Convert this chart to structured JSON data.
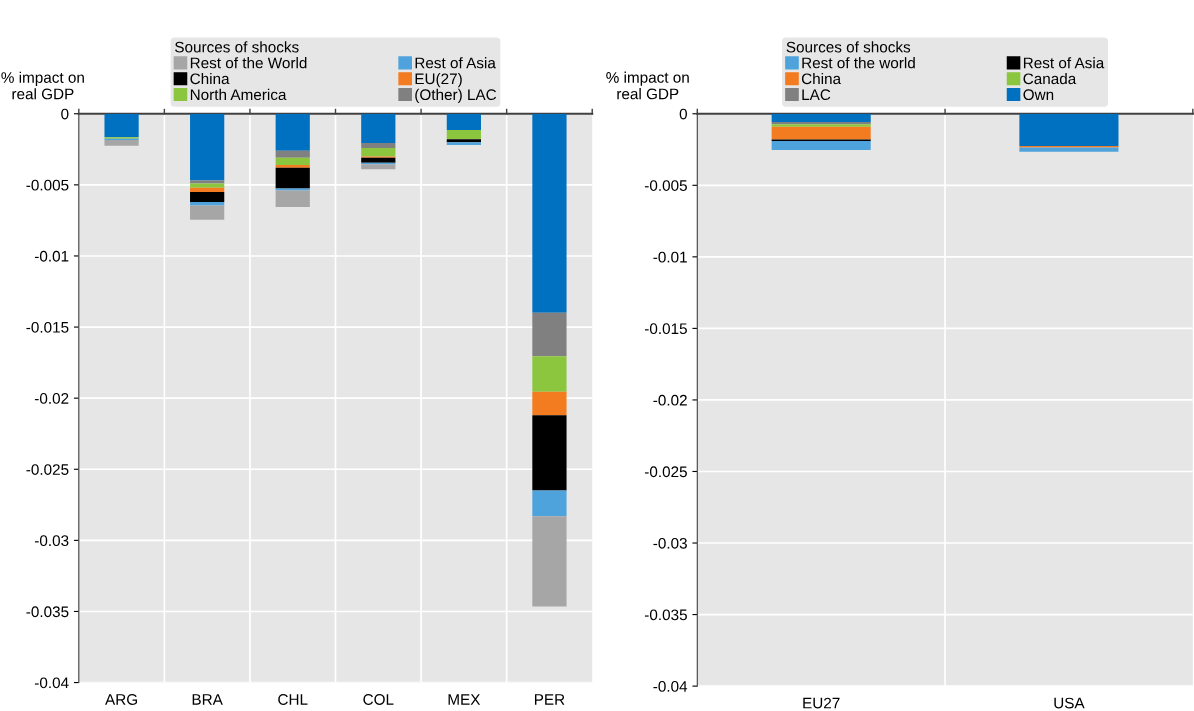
{
  "chart_data": [
    {
      "type": "bar",
      "stacked": true,
      "ylabel": "% impact on\nreal GDP",
      "legend_title": "Sources of shocks",
      "legend": "top",
      "categories": [
        "ARG",
        "BRA",
        "CHL",
        "COL",
        "MEX",
        "PER"
      ],
      "ylim": [
        -0.04,
        0
      ],
      "yticks": [
        -0.04,
        -0.035,
        -0.03,
        -0.025,
        -0.02,
        -0.015,
        -0.01,
        -0.005,
        0
      ],
      "grid": true,
      "series": [
        {
          "color": "#0070c0",
          "values": [
            -0.00165,
            -0.0047,
            -0.0026,
            -0.00205,
            -0.00115,
            -0.014
          ]
        },
        {
          "name": "(Other) LAC",
          "color": "#808080",
          "values": [
            null,
            -0.0002,
            -0.0005,
            -0.00035,
            null,
            -0.00305
          ]
        },
        {
          "name": "North America",
          "color": "#8cc63f",
          "values": [
            -0.0001,
            -0.0003,
            -0.0005,
            -0.0006,
            -0.00065,
            -0.0025
          ]
        },
        {
          "name": "EU(27)",
          "color": "#f47c20",
          "values": [
            null,
            -0.0003,
            -0.0002,
            -0.0001,
            null,
            -0.00165
          ]
        },
        {
          "name": "China",
          "color": "#000000",
          "values": [
            null,
            -0.0007,
            -0.00145,
            -0.00035,
            -0.0002,
            -0.0053
          ]
        },
        {
          "name": "Rest of Asia",
          "color": "#4fa3dc",
          "values": [
            -0.0001,
            -0.00025,
            -0.00015,
            -0.0001,
            -0.0002,
            -0.0018
          ]
        },
        {
          "name": "Rest of the World",
          "color": "#a6a6a6",
          "values": [
            -0.0004,
            -0.001,
            -0.00115,
            -0.00035,
            null,
            -0.00635
          ]
        }
      ]
    },
    {
      "type": "bar",
      "stacked": true,
      "ylabel": "% impact on\nreal GDP",
      "legend_title": "Sources of shocks",
      "legend": "top",
      "categories": [
        "EU27",
        "USA"
      ],
      "ylim": [
        -0.04,
        0
      ],
      "yticks": [
        -0.04,
        -0.035,
        -0.03,
        -0.025,
        -0.02,
        -0.015,
        -0.01,
        -0.005,
        0
      ],
      "grid": true,
      "series": [
        {
          "name": "Own",
          "color": "#0070c0",
          "values": [
            -0.00058,
            -0.00226
          ]
        },
        {
          "name": "LAC",
          "color": "#808080",
          "values": [
            -0.00016,
            null
          ]
        },
        {
          "name": "Canada",
          "color": "#8cc63f",
          "values": [
            -0.00016,
            null
          ]
        },
        {
          "name": "China",
          "color": "#f47c20",
          "values": [
            -0.0009,
            -0.0001
          ]
        },
        {
          "name": "Rest of Asia",
          "color": "#000000",
          "values": [
            -0.0001,
            null
          ]
        },
        {
          "name": "Rest of the world",
          "color": "#4fa3dc",
          "values": [
            -0.00063,
            -0.0003
          ]
        }
      ]
    }
  ]
}
